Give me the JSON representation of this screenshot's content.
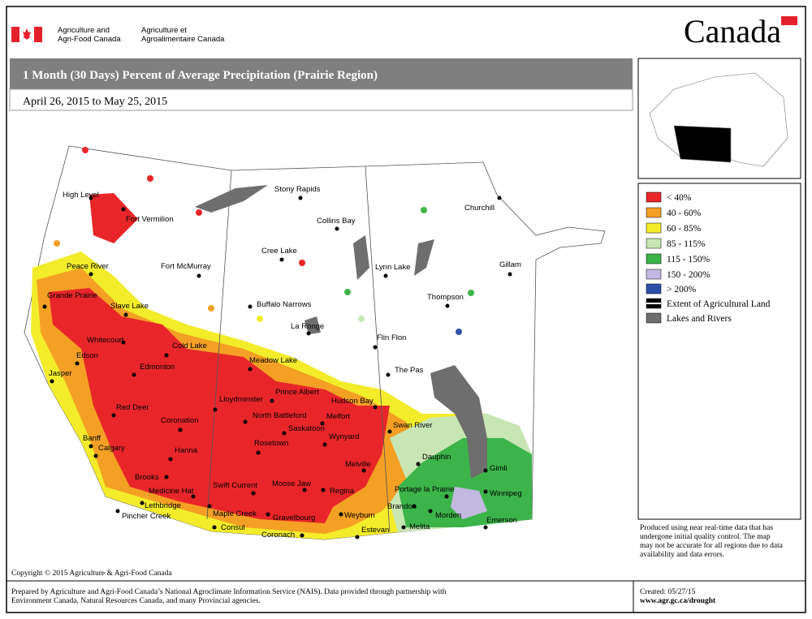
{
  "header": {
    "dept_en": [
      "Agriculture and",
      "Agri-Food Canada"
    ],
    "dept_fr": [
      "Agriculture et",
      "Agroalimentaire Canada"
    ],
    "wordmark": "Canada"
  },
  "title": "1 Month (30 Days) Percent of Average Precipitation  (Prairie Region)",
  "date_range": "April 26, 2015 to May 25, 2015",
  "legend": [
    "< 40%",
    "40 - 60%",
    "60 - 85%",
    "85 - 115%",
    "115 - 150%",
    "150 - 200%",
    "> 200%",
    "Extent of Agricultural Land",
    "Lakes and Rivers"
  ],
  "cities": [
    "High Level",
    "Fort Vermilion",
    "Stony Rapids",
    "Churchill",
    "Collins Bay",
    "Peace River",
    "Fort McMurray",
    "Cree Lake",
    "Lynn Lake",
    "Gillam",
    "Grande Prairie",
    "Slave Lake",
    "Buffalo Narrows",
    "Thompson",
    "La Ronge",
    "Whitecourt",
    "Cold Lake",
    "Flin Flon",
    "Edson",
    "Meadow Lake",
    "Jasper",
    "Edmonton",
    "The Pas",
    "Prince Albert",
    "Hudson Bay",
    "Lloydminster",
    "North Battleford",
    "Melfort",
    "Red Deer",
    "Coronation",
    "Saskatoon",
    "Wynyard",
    "Swan River",
    "Banff",
    "Calgary",
    "Rosetown",
    "Hanna",
    "Dauphin",
    "Melville",
    "Gimli",
    "Brooks",
    "Moose Jaw",
    "Swift Current",
    "Regina",
    "Portage la Prairie",
    "Medicine Hat",
    "Winnipeg",
    "Lethbridge",
    "Brandon",
    "Morden",
    "Maple Creek",
    "Gravelbourg",
    "Weyburn",
    "Emerson",
    "Pincher Creek",
    "Consul",
    "Melita",
    "Estevan",
    "Coronach"
  ],
  "disclaimer": [
    "Produced using near real-time data that has",
    "undergone initial quality control.  The map",
    "may not be accurate for all regions due to data",
    "availability and data errors."
  ],
  "copyright": "Copyright © 2015 Agriculture & Agri-Food Canada",
  "prepared_by": [
    "Prepared by Agriculture and Agri-Food Canada’s National Agroclimate Information Service (NAIS).   Data provided through partnership with",
    "Environment Canada, Natural Resources Canada, and many Provincial agencies."
  ],
  "created": "Created: 05/27/15",
  "url": "www.agr.gc.ca/drought"
}
